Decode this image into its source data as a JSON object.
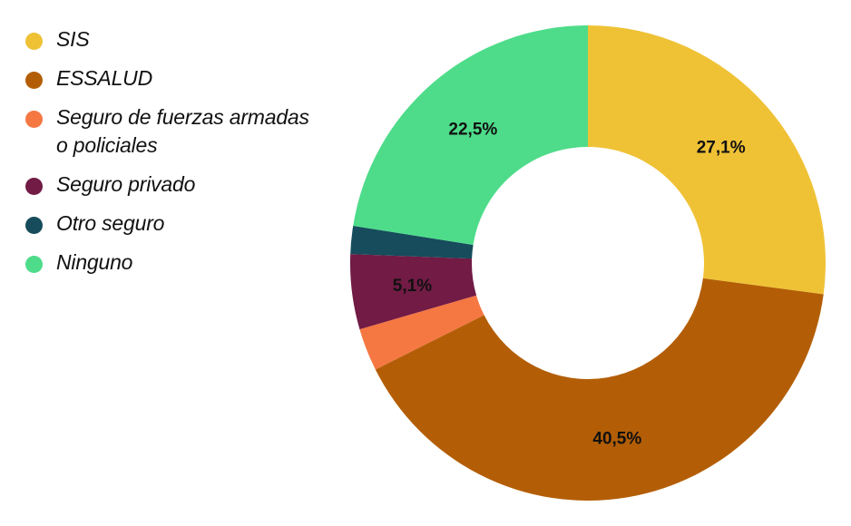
{
  "chart_data": {
    "type": "pie",
    "donut": true,
    "legend_position": "left",
    "title": "",
    "categories": [
      "SIS",
      "ESSALUD",
      "Seguro de fuerzas armadas o policiales",
      "Seguro privado",
      "Otro seguro",
      "Ninguno"
    ],
    "values": [
      27.1,
      40.5,
      2.9,
      5.1,
      1.9,
      22.5
    ],
    "value_labels": [
      "27,1%",
      "40,5%",
      "",
      "5,1%",
      "",
      "22,5%"
    ],
    "colors": [
      "#EFC236",
      "#B35E06",
      "#F57742",
      "#711B45",
      "#164C5B",
      "#4EDC8A"
    ],
    "unit": "%"
  }
}
